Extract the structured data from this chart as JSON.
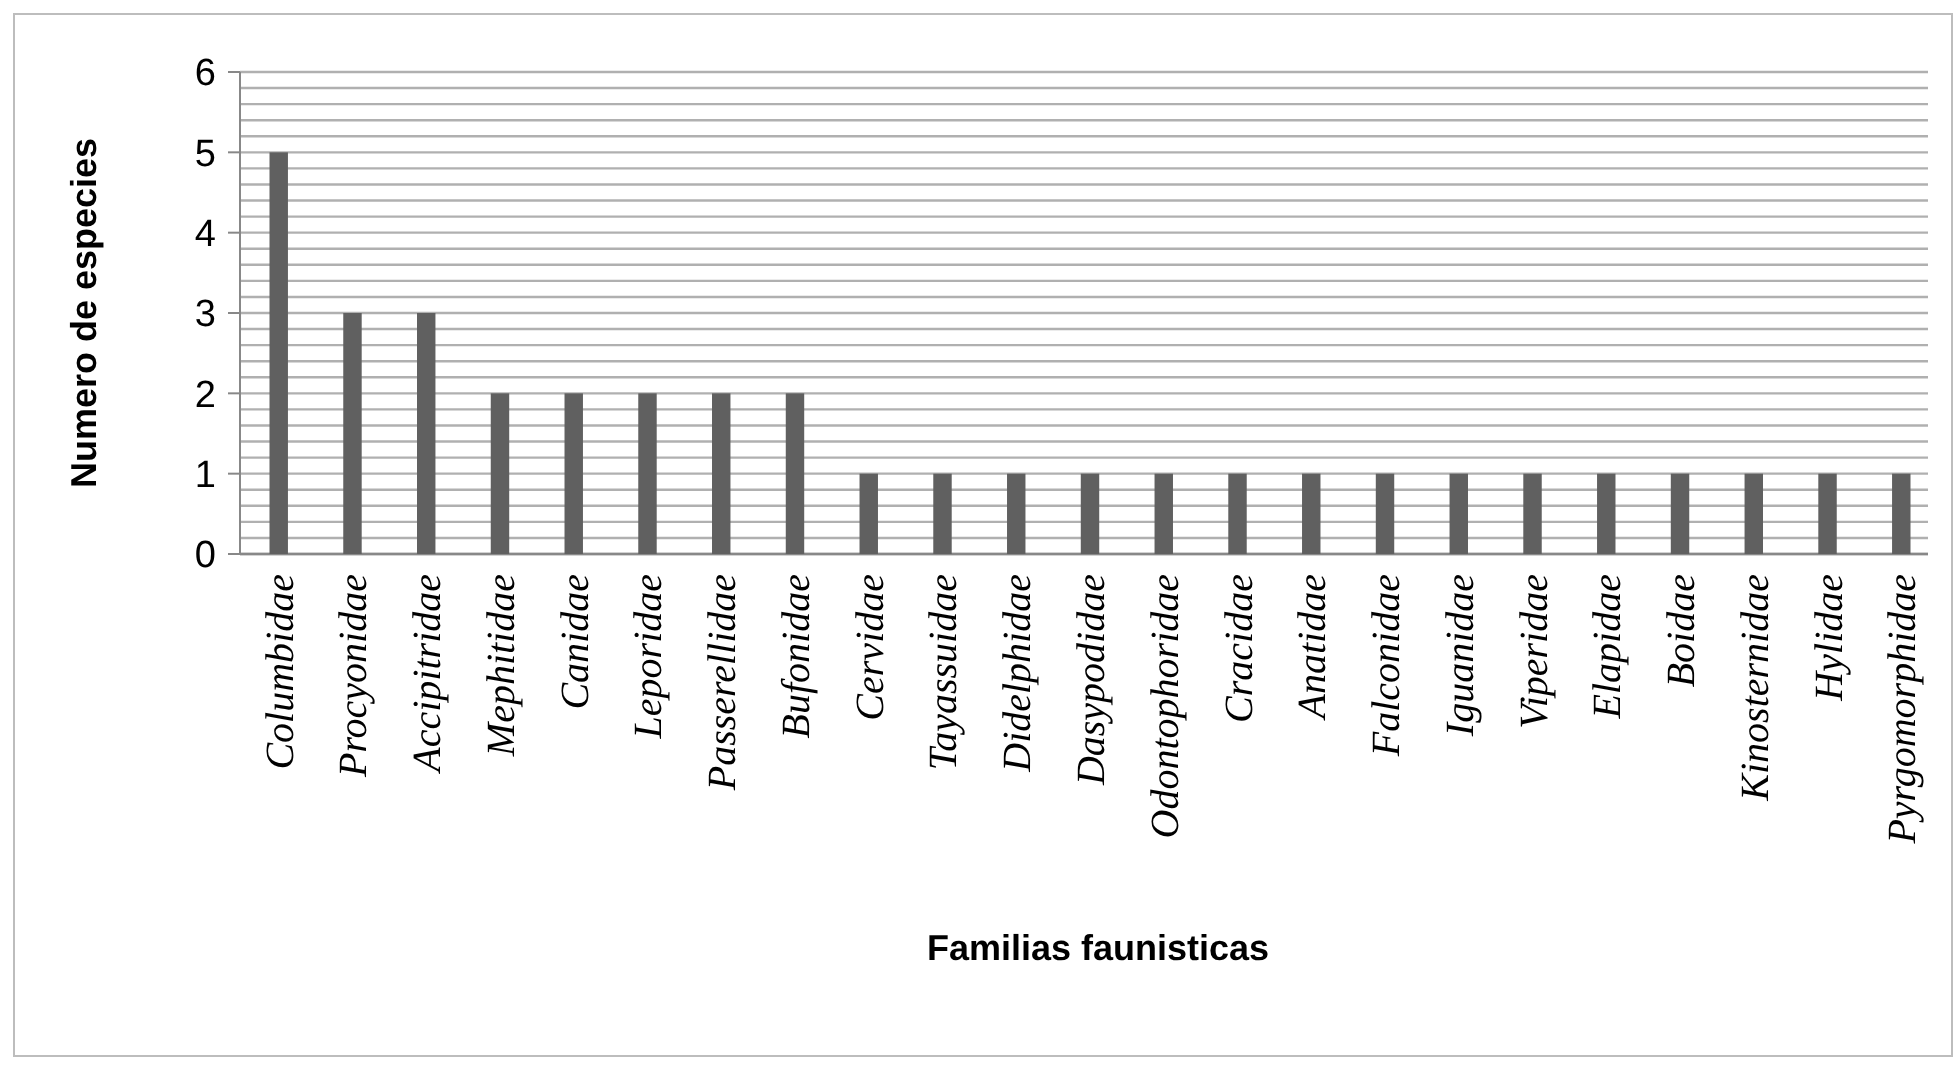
{
  "chart_data": {
    "type": "bar",
    "xlabel": "Familias faunisticas",
    "ylabel": "Numero de especies",
    "categories": [
      "Columbidae",
      "Procyonidae",
      "Accipitridae",
      "Mephitidae",
      "Canidae",
      "Leporidae",
      "Passerellidae",
      "Bufonidae",
      "Cervidae",
      "Tayassuidae",
      "Didelphidae",
      "Dasypodidae",
      "Odontophoridae",
      "Cracidae",
      "Anatidae",
      "Falconidae",
      "Iguanidae",
      "Viperidae",
      "Elapidae",
      "Boidae",
      "Kinosternidae",
      "Hylidae",
      "Pyrgomorphidae"
    ],
    "values": [
      5,
      3,
      3,
      2,
      2,
      2,
      2,
      2,
      1,
      1,
      1,
      1,
      1,
      1,
      1,
      1,
      1,
      1,
      1,
      1,
      1,
      1,
      1
    ],
    "color": "#606060",
    "ylim": [
      0,
      6
    ],
    "yticks": [
      0,
      {
        "value": 0.2,
        "label": null
      },
      {
        "value": 0.4,
        "label": null
      },
      {
        "value": 0.6,
        "label": null
      },
      {
        "value": 0.8,
        "label": null
      },
      1,
      {
        "value": 1.2,
        "label": null
      },
      {
        "value": 1.4,
        "label": null
      },
      {
        "value": 1.6,
        "label": null
      },
      {
        "value": 1.8,
        "label": null
      },
      2,
      {
        "value": 2.2,
        "label": null
      },
      {
        "value": 2.4,
        "label": null
      },
      {
        "value": 2.6,
        "label": null
      },
      {
        "value": 2.8,
        "label": null
      },
      3,
      {
        "value": 3.2,
        "label": null
      },
      {
        "value": 3.4,
        "label": null
      },
      {
        "value": 3.6,
        "label": null
      },
      {
        "value": 3.8,
        "label": null
      },
      4,
      {
        "value": 4.2,
        "label": null
      },
      {
        "value": 4.4,
        "label": null
      },
      {
        "value": 4.6,
        "label": null
      },
      {
        "value": 4.8,
        "label": null
      },
      5,
      {
        "value": 5.2,
        "label": null
      },
      {
        "value": 5.4,
        "label": null
      },
      {
        "value": 5.6,
        "label": null
      },
      {
        "value": 5.8,
        "label": null
      },
      6
    ],
    "grid": "y"
  }
}
